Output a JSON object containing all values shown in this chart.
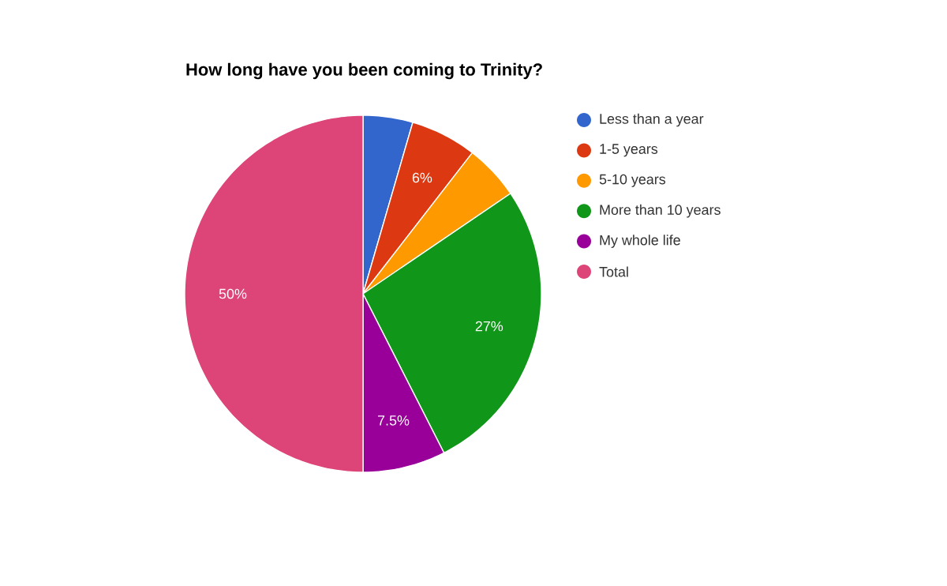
{
  "chart_data": {
    "type": "pie",
    "title": "How long have you been coming to Trinity?",
    "categories": [
      "Less than a year",
      "1-5 years",
      "5-10 years",
      "More than 10 years",
      "My whole life",
      "Total"
    ],
    "values": [
      4.5,
      6,
      5,
      27,
      7.5,
      50
    ],
    "colors": [
      "#3366cc",
      "#dc3912",
      "#ff9900",
      "#109618",
      "#990099",
      "#dd4477"
    ],
    "value_labels": [
      null,
      "6%",
      null,
      "27%",
      "7.5%",
      "50%"
    ],
    "legend": "right"
  }
}
